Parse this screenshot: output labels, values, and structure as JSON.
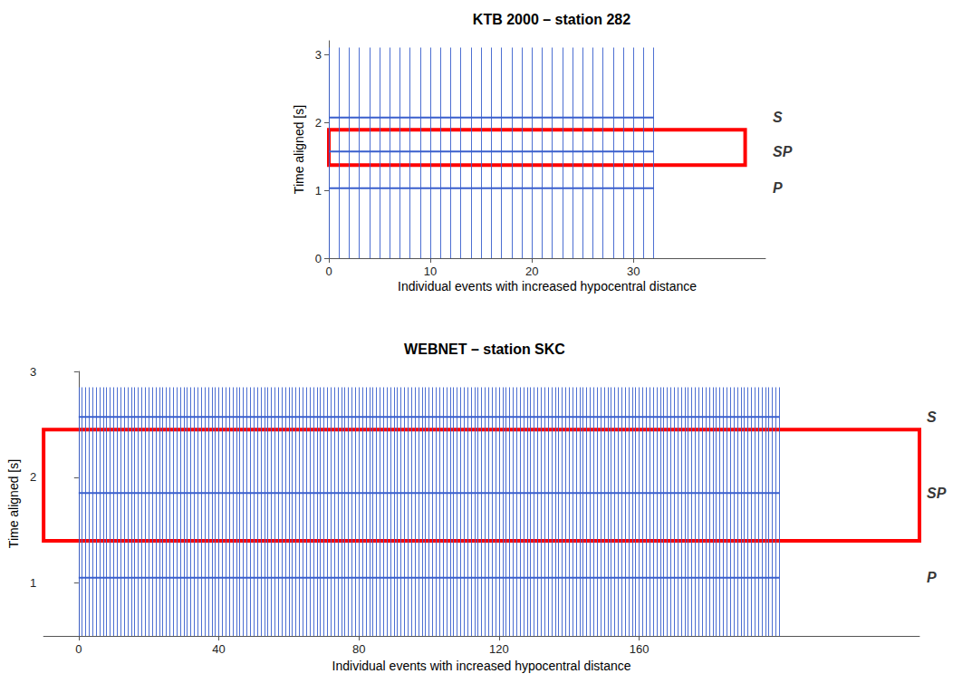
{
  "chart_data": [
    {
      "type": "seismic_section",
      "title": "KTB 2000 – station 282",
      "xlabel": "Individual events with increased hypocentral distance",
      "ylabel": "Time aligned [s]",
      "xlim": [
        0,
        43
      ],
      "xticks": [
        0,
        10,
        20,
        30
      ],
      "ylim": [
        0,
        3.2
      ],
      "yticks": [
        0,
        1,
        2,
        3
      ],
      "color": "#3a5fcd",
      "events": [
        0,
        1,
        2,
        3,
        4,
        5,
        6,
        7,
        8,
        9,
        10,
        11,
        12,
        13,
        14,
        15,
        16,
        17,
        18,
        19,
        20,
        21,
        22,
        23,
        24,
        25,
        26,
        27,
        28,
        29,
        30,
        31,
        32
      ],
      "trace_time": [
        0,
        3.1
      ],
      "phases": [
        {
          "label": "P",
          "time": 1.03
        },
        {
          "label": "SP",
          "time": 1.57
        },
        {
          "label": "S",
          "time": 2.07
        }
      ],
      "highlight": {
        "xlim": [
          0,
          41
        ],
        "ylim": [
          1.37,
          1.89
        ],
        "color": "#ff0000"
      }
    },
    {
      "type": "seismic_section",
      "title": "WEBNET – station SKC",
      "xlabel": "Individual events with increased hypocentral distance",
      "ylabel": "Time aligned [s]",
      "xlim": [
        -10,
        240
      ],
      "xticks": [
        0,
        40,
        80,
        120,
        160
      ],
      "ylim": [
        0.5,
        3
      ],
      "yticks": [
        1,
        2,
        3
      ],
      "color": "#3a5fcd",
      "events": [
        0,
        1,
        2,
        3,
        4,
        5,
        6,
        7,
        8,
        9,
        10,
        11,
        12,
        13,
        14,
        15,
        16,
        17,
        18,
        19,
        20,
        21,
        22,
        23,
        24,
        25,
        26,
        27,
        28,
        29,
        30,
        31,
        32,
        33,
        34,
        35,
        36,
        37,
        38,
        39,
        40,
        41,
        42,
        43,
        44,
        45,
        46,
        47,
        48,
        49,
        50,
        51,
        52,
        53,
        54,
        55,
        56,
        57,
        58,
        59,
        60,
        61,
        62,
        63,
        64,
        65,
        66,
        67,
        68,
        69,
        70,
        71,
        72,
        73,
        74,
        75,
        76,
        77,
        78,
        79,
        80,
        81,
        82,
        83,
        84,
        85,
        86,
        87,
        88,
        89,
        90,
        91,
        92,
        93,
        94,
        95,
        96,
        97,
        98,
        99,
        100,
        101,
        102,
        103,
        104,
        105,
        106,
        107,
        108,
        109,
        110,
        111,
        112,
        113,
        114,
        115,
        116,
        117,
        118,
        119,
        120,
        121,
        122,
        123,
        124,
        125,
        126,
        127,
        128,
        129,
        130,
        131,
        132,
        133,
        134,
        135,
        136,
        137,
        138,
        139,
        140,
        141,
        142,
        143,
        144,
        145,
        146,
        147,
        148,
        149,
        150,
        151,
        152,
        153,
        154,
        155,
        156,
        157,
        158,
        159,
        160,
        161,
        162,
        163,
        164,
        165,
        166,
        167,
        168,
        169,
        170,
        171,
        172,
        173,
        174,
        175,
        176,
        177,
        178,
        179,
        180,
        181,
        182,
        183,
        184,
        185,
        186,
        187,
        188,
        189,
        190,
        191,
        192,
        193,
        194,
        195,
        196,
        197,
        198,
        199,
        200
      ],
      "trace_time": [
        0.5,
        2.85
      ],
      "phases": [
        {
          "label": "P",
          "time": 1.05
        },
        {
          "label": "SP",
          "time": 1.85
        },
        {
          "label": "S",
          "time": 2.57
        }
      ],
      "highlight": {
        "xlim": [
          -10,
          240
        ],
        "ylim": [
          1.4,
          2.45
        ],
        "color": "#ff0000"
      }
    }
  ]
}
